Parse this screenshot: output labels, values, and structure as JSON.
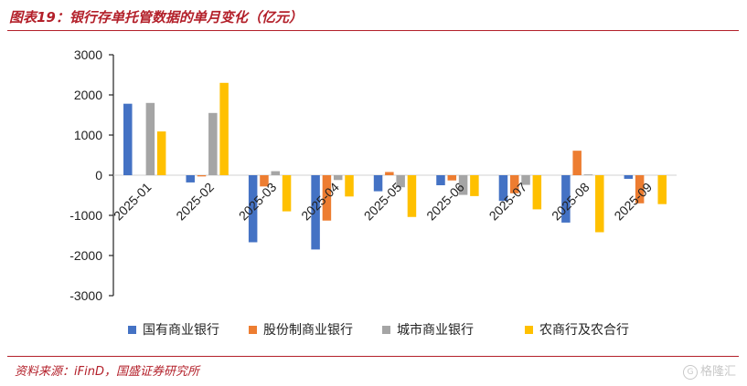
{
  "header": {
    "title": "图表19：银行存单托管数据的单月变化（亿元）"
  },
  "footer": {
    "source": "资料来源：iFinD，国盛证券研究所",
    "watermark": "格隆汇"
  },
  "colors": {
    "accent": "#b3202a"
  },
  "chart_data": {
    "type": "bar",
    "title": "银行存单托管数据的单月变化（亿元）",
    "ylabel": "亿元",
    "xlabel": "",
    "ylim": [
      -3000,
      3000
    ],
    "yticks": [
      3000,
      2000,
      1000,
      0,
      -1000,
      -2000,
      -3000
    ],
    "grid": false,
    "legend_position": "bottom",
    "categories": [
      "2025-01",
      "2025-02",
      "2025-03",
      "2025-04",
      "2025-05",
      "2025-06",
      "2025-07",
      "2025-08",
      "2025-09"
    ],
    "series": [
      {
        "name": "国有商业银行",
        "color": "#4472c4",
        "values": [
          1780,
          -180,
          -1670,
          -1850,
          -400,
          -250,
          -640,
          -1180,
          -90
        ]
      },
      {
        "name": "股份制商业银行",
        "color": "#ed7d31",
        "values": [
          0,
          -30,
          -280,
          -1130,
          80,
          -130,
          -450,
          610,
          -700
        ]
      },
      {
        "name": "城市商业银行",
        "color": "#a5a5a5",
        "values": [
          1800,
          1550,
          100,
          -120,
          -300,
          -490,
          -240,
          20,
          0
        ]
      },
      {
        "name": "农商行及农合行",
        "color": "#ffc000",
        "values": [
          1090,
          2300,
          -900,
          -530,
          -1040,
          -520,
          -850,
          -1420,
          -720
        ]
      }
    ]
  }
}
